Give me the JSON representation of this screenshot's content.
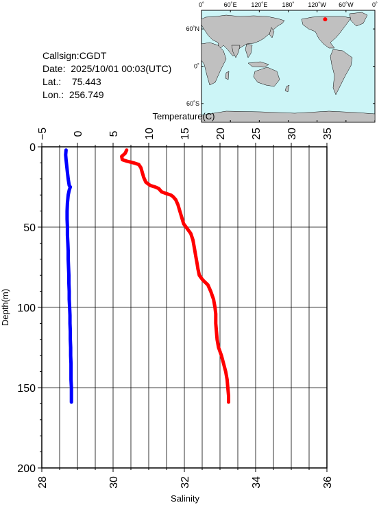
{
  "station": {
    "callsign_label": "Callsign:",
    "callsign": "CGDT",
    "date_label": "Date:",
    "date": "2025/10/01 00:03(UTC)",
    "lat_label": "Lat.:",
    "lat": "75.443",
    "lon_label": "Lon.:",
    "lon": "256.749"
  },
  "map": {
    "lon_ticks": [
      "0˚",
      "60˚E",
      "120˚E",
      "180˚",
      "120˚W",
      "60˚W",
      "0˚"
    ],
    "lat_ticks": [
      "60˚N",
      "0˚",
      "60˚S"
    ],
    "ocean_color": "#ccf5f7",
    "land_color": "#c0c0c0",
    "marker_color": "#ff0000",
    "station_lon": 256.749,
    "station_lat": 75.443
  },
  "chart_data": {
    "type": "line",
    "top_axis": {
      "label": "Temperature(C)",
      "range": [
        -5,
        35
      ],
      "ticks": [
        "−5",
        "0",
        "5",
        "10",
        "15",
        "20",
        "25",
        "30",
        "35"
      ]
    },
    "bottom_axis": {
      "label": "Salinity",
      "range": [
        28,
        36
      ],
      "ticks": [
        "28",
        "30",
        "32",
        "34",
        "36"
      ]
    },
    "y_axis": {
      "label": "Depth(m)",
      "range": [
        0,
        200
      ],
      "inverted": true,
      "ticks": [
        "0",
        "50",
        "100",
        "150",
        "200"
      ]
    },
    "grid": true,
    "series": [
      {
        "axis": "temperature",
        "color": "#ff0000",
        "points": [
          [
            6.9,
            2
          ],
          [
            6.7,
            4
          ],
          [
            6.2,
            6
          ],
          [
            6.3,
            8
          ],
          [
            7.0,
            9
          ],
          [
            7.9,
            10
          ],
          [
            8.6,
            11
          ],
          [
            8.9,
            13
          ],
          [
            9.1,
            16
          ],
          [
            9.3,
            19
          ],
          [
            9.6,
            22
          ],
          [
            10.2,
            24
          ],
          [
            10.9,
            25
          ],
          [
            11.4,
            26
          ],
          [
            11.8,
            28
          ],
          [
            12.4,
            29
          ],
          [
            13.1,
            30
          ],
          [
            13.4,
            31
          ],
          [
            13.8,
            33
          ],
          [
            14.1,
            36
          ],
          [
            14.3,
            39
          ],
          [
            14.5,
            42
          ],
          [
            14.7,
            45
          ],
          [
            14.9,
            48
          ],
          [
            15.4,
            51
          ],
          [
            15.9,
            54
          ],
          [
            16.2,
            58
          ],
          [
            16.4,
            63
          ],
          [
            16.6,
            68
          ],
          [
            16.8,
            73
          ],
          [
            16.9,
            76
          ],
          [
            17.1,
            80
          ],
          [
            17.6,
            83
          ],
          [
            18.3,
            86
          ],
          [
            18.7,
            90
          ],
          [
            19.1,
            95
          ],
          [
            19.3,
            100
          ],
          [
            19.4,
            104
          ],
          [
            19.4,
            110
          ],
          [
            19.5,
            115
          ],
          [
            19.6,
            120
          ],
          [
            19.8,
            125
          ],
          [
            20.2,
            130
          ],
          [
            20.5,
            135
          ],
          [
            20.8,
            140
          ],
          [
            21.0,
            145
          ],
          [
            21.1,
            150
          ],
          [
            21.2,
            155
          ],
          [
            21.2,
            159
          ]
        ]
      },
      {
        "axis": "salinity",
        "color": "#0000ff",
        "points": [
          [
            28.68,
            2
          ],
          [
            28.67,
            5
          ],
          [
            28.68,
            8
          ],
          [
            28.7,
            12
          ],
          [
            28.72,
            16
          ],
          [
            28.74,
            20
          ],
          [
            28.77,
            24
          ],
          [
            28.8,
            25
          ],
          [
            28.77,
            27
          ],
          [
            28.74,
            30
          ],
          [
            28.72,
            35
          ],
          [
            28.71,
            40
          ],
          [
            28.71,
            45
          ],
          [
            28.72,
            50
          ],
          [
            28.72,
            55
          ],
          [
            28.73,
            60
          ],
          [
            28.74,
            65
          ],
          [
            28.74,
            70
          ],
          [
            28.75,
            75
          ],
          [
            28.76,
            80
          ],
          [
            28.76,
            85
          ],
          [
            28.77,
            90
          ],
          [
            28.77,
            95
          ],
          [
            28.78,
            100
          ],
          [
            28.79,
            105
          ],
          [
            28.79,
            110
          ],
          [
            28.8,
            115
          ],
          [
            28.8,
            120
          ],
          [
            28.81,
            125
          ],
          [
            28.81,
            130
          ],
          [
            28.82,
            135
          ],
          [
            28.82,
            140
          ],
          [
            28.82,
            145
          ],
          [
            28.83,
            150
          ],
          [
            28.83,
            155
          ],
          [
            28.83,
            159
          ]
        ]
      }
    ]
  }
}
